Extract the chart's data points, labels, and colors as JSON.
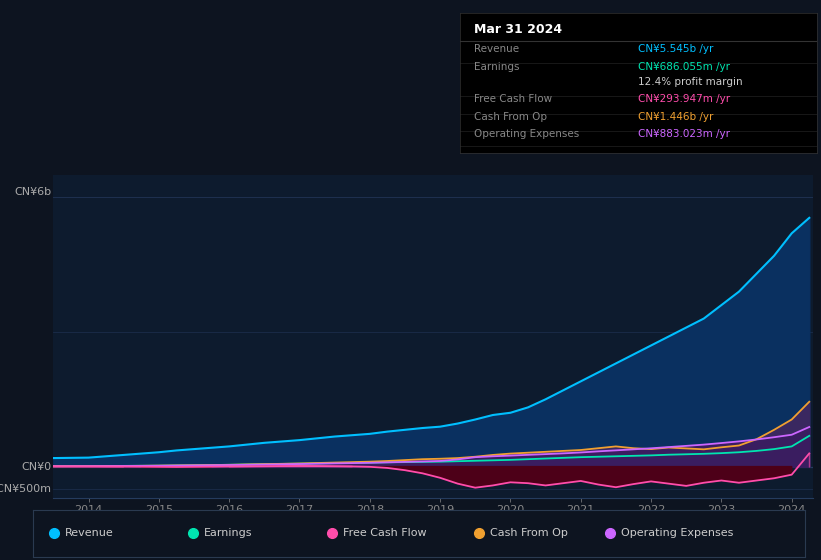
{
  "bg_color": "#0d1420",
  "plot_bg_color": "#0d1b2e",
  "grid_color": "#1e3050",
  "title_box": {
    "date": "Mar 31 2024",
    "rows": [
      {
        "label": "Revenue",
        "value": "CN¥5.545b /yr",
        "value_color": "#00bfff"
      },
      {
        "label": "Earnings",
        "value": "CN¥686.055m /yr",
        "value_color": "#00e5b0"
      },
      {
        "label": "",
        "value": "12.4% profit margin",
        "value_color": "#cccccc"
      },
      {
        "label": "Free Cash Flow",
        "value": "CN¥293.947m /yr",
        "value_color": "#ff4dab"
      },
      {
        "label": "Cash From Op",
        "value": "CN¥1.446b /yr",
        "value_color": "#f0a030"
      },
      {
        "label": "Operating Expenses",
        "value": "CN¥883.023m /yr",
        "value_color": "#cc66ff"
      }
    ]
  },
  "ylabel_top": "CN¥6b",
  "ylabel_zero": "CN¥0",
  "ylabel_neg": "-CN¥500m",
  "ylim": [
    -700000000,
    6500000000
  ],
  "years": [
    2013.5,
    2014.0,
    2014.25,
    2014.5,
    2014.75,
    2015.0,
    2015.25,
    2015.5,
    2015.75,
    2016.0,
    2016.25,
    2016.5,
    2016.75,
    2017.0,
    2017.25,
    2017.5,
    2017.75,
    2018.0,
    2018.25,
    2018.5,
    2018.75,
    2019.0,
    2019.25,
    2019.5,
    2019.75,
    2020.0,
    2020.25,
    2020.5,
    2020.75,
    2021.0,
    2021.25,
    2021.5,
    2021.75,
    2022.0,
    2022.25,
    2022.5,
    2022.75,
    2023.0,
    2023.25,
    2023.5,
    2023.75,
    2024.0,
    2024.25
  ],
  "revenue": [
    190000000.0,
    200000000.0,
    230000000.0,
    260000000.0,
    290000000.0,
    320000000.0,
    360000000.0,
    390000000.0,
    420000000.0,
    450000000.0,
    490000000.0,
    530000000.0,
    560000000.0,
    590000000.0,
    630000000.0,
    670000000.0,
    700000000.0,
    730000000.0,
    780000000.0,
    820000000.0,
    860000000.0,
    890000000.0,
    960000000.0,
    1050000000.0,
    1150000000.0,
    1200000000.0,
    1320000000.0,
    1500000000.0,
    1700000000.0,
    1900000000.0,
    2100000000.0,
    2300000000.0,
    2500000000.0,
    2700000000.0,
    2900000000.0,
    3100000000.0,
    3300000000.0,
    3600000000.0,
    3900000000.0,
    4300000000.0,
    4700000000.0,
    5200000000.0,
    5545000000.0
  ],
  "earnings": [
    10000000.0,
    12000000.0,
    14000000.0,
    16000000.0,
    18000000.0,
    20000000.0,
    25000000.0,
    30000000.0,
    35000000.0,
    40000000.0,
    48000000.0,
    55000000.0,
    60000000.0,
    65000000.0,
    72000000.0,
    78000000.0,
    82000000.0,
    88000000.0,
    95000000.0,
    100000000.0,
    105000000.0,
    110000000.0,
    120000000.0,
    130000000.0,
    140000000.0,
    150000000.0,
    165000000.0,
    180000000.0,
    195000000.0,
    210000000.0,
    220000000.0,
    230000000.0,
    240000000.0,
    250000000.0,
    265000000.0,
    275000000.0,
    285000000.0,
    300000000.0,
    320000000.0,
    350000000.0,
    390000000.0,
    450000000.0,
    686000000.0
  ],
  "free_cash_flow": [
    5000000.0,
    3000000.0,
    1000000.0,
    0,
    -2000000.0,
    -5000000.0,
    -8000000.0,
    -5000000.0,
    -2000000.0,
    2000000.0,
    5000000.0,
    8000000.0,
    12000000.0,
    15000000.0,
    12000000.0,
    8000000.0,
    4000000.0,
    -5000000.0,
    -30000000.0,
    -80000000.0,
    -150000000.0,
    -250000000.0,
    -380000000.0,
    -470000000.0,
    -420000000.0,
    -350000000.0,
    -370000000.0,
    -420000000.0,
    -370000000.0,
    -320000000.0,
    -400000000.0,
    -460000000.0,
    -390000000.0,
    -330000000.0,
    -380000000.0,
    -430000000.0,
    -360000000.0,
    -310000000.0,
    -360000000.0,
    -310000000.0,
    -260000000.0,
    -180000000.0,
    294000000.0
  ],
  "cash_from_op": [
    8000000.0,
    10000000.0,
    12000000.0,
    15000000.0,
    18000000.0,
    22000000.0,
    26000000.0,
    30000000.0,
    35000000.0,
    40000000.0,
    48000000.0,
    55000000.0,
    62000000.0,
    70000000.0,
    80000000.0,
    90000000.0,
    100000000.0,
    110000000.0,
    125000000.0,
    145000000.0,
    165000000.0,
    175000000.0,
    190000000.0,
    220000000.0,
    260000000.0,
    290000000.0,
    310000000.0,
    330000000.0,
    350000000.0,
    370000000.0,
    410000000.0,
    450000000.0,
    410000000.0,
    390000000.0,
    425000000.0,
    405000000.0,
    385000000.0,
    430000000.0,
    470000000.0,
    610000000.0,
    820000000.0,
    1050000000.0,
    1446000000.0
  ],
  "op_expenses": [
    8000000.0,
    10000000.0,
    12000000.0,
    14000000.0,
    16000000.0,
    18000000.0,
    22000000.0,
    26000000.0,
    30000000.0,
    35000000.0,
    40000000.0,
    46000000.0,
    52000000.0,
    58000000.0,
    65000000.0,
    72000000.0,
    78000000.0,
    85000000.0,
    95000000.0,
    105000000.0,
    115000000.0,
    125000000.0,
    160000000.0,
    210000000.0,
    230000000.0,
    245000000.0,
    262000000.0,
    278000000.0,
    295000000.0,
    315000000.0,
    340000000.0,
    362000000.0,
    385000000.0,
    408000000.0,
    435000000.0,
    462000000.0,
    490000000.0,
    525000000.0,
    562000000.0,
    605000000.0,
    655000000.0,
    710000000.0,
    883000000.0
  ],
  "revenue_color": "#00bfff",
  "revenue_fill": "#0a3060",
  "earnings_color": "#00e5b0",
  "earnings_fill": "#083530",
  "fcf_color": "#ff4dab",
  "fcf_fill_neg": "#4d0018",
  "cashop_color": "#f0a030",
  "cashop_fill": "#3a2860",
  "opex_color": "#cc66ff",
  "opex_fill": "#3a1d60",
  "legend_items": [
    {
      "label": "Revenue",
      "color": "#00bfff"
    },
    {
      "label": "Earnings",
      "color": "#00e5b0"
    },
    {
      "label": "Free Cash Flow",
      "color": "#ff4dab"
    },
    {
      "label": "Cash From Op",
      "color": "#f0a030"
    },
    {
      "label": "Operating Expenses",
      "color": "#cc66ff"
    }
  ],
  "xtick_years": [
    2014,
    2015,
    2016,
    2017,
    2018,
    2019,
    2020,
    2021,
    2022,
    2023,
    2024
  ]
}
